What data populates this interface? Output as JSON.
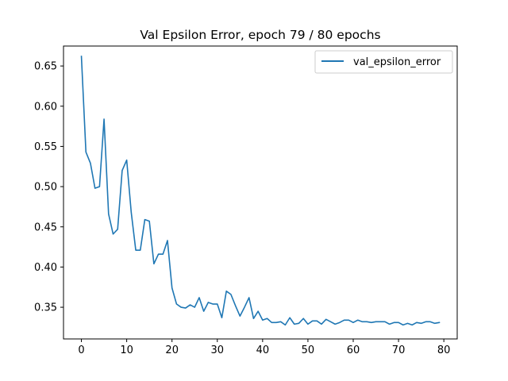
{
  "chart_data": {
    "type": "line",
    "title": "Val Epsilon Error, epoch 79 / 80 epochs",
    "xlabel": "",
    "ylabel": "",
    "xlim": [
      -3.95,
      82.95
    ],
    "ylim": [
      0.3106,
      0.6748
    ],
    "x_ticks": [
      0,
      10,
      20,
      30,
      40,
      50,
      60,
      70,
      80
    ],
    "y_ticks": [
      0.35,
      0.4,
      0.45,
      0.5,
      0.55,
      0.6,
      0.65
    ],
    "grid": false,
    "legend": {
      "placement": "top-right",
      "entries": [
        "val_epsilon_error"
      ]
    },
    "series": [
      {
        "name": "val_epsilon_error",
        "color": "#1f77b4",
        "x": [
          0,
          1,
          2,
          3,
          4,
          5,
          6,
          7,
          8,
          9,
          10,
          11,
          12,
          13,
          14,
          15,
          16,
          17,
          18,
          19,
          20,
          21,
          22,
          23,
          24,
          25,
          26,
          27,
          28,
          29,
          30,
          31,
          32,
          33,
          34,
          35,
          36,
          37,
          38,
          39,
          40,
          41,
          42,
          43,
          44,
          45,
          46,
          47,
          48,
          49,
          50,
          51,
          52,
          53,
          54,
          55,
          56,
          57,
          58,
          59,
          60,
          61,
          62,
          63,
          64,
          65,
          66,
          67,
          68,
          69,
          70,
          71,
          72,
          73,
          74,
          75,
          76,
          77,
          78,
          79
        ],
        "y": [
          0.662,
          0.543,
          0.529,
          0.498,
          0.5,
          0.584,
          0.466,
          0.441,
          0.447,
          0.52,
          0.533,
          0.468,
          0.421,
          0.421,
          0.459,
          0.457,
          0.404,
          0.416,
          0.416,
          0.433,
          0.374,
          0.354,
          0.35,
          0.349,
          0.353,
          0.35,
          0.362,
          0.345,
          0.356,
          0.354,
          0.354,
          0.337,
          0.37,
          0.366,
          0.352,
          0.339,
          0.35,
          0.362,
          0.336,
          0.345,
          0.334,
          0.336,
          0.331,
          0.331,
          0.332,
          0.328,
          0.337,
          0.329,
          0.33,
          0.336,
          0.329,
          0.333,
          0.333,
          0.329,
          0.335,
          0.332,
          0.329,
          0.331,
          0.334,
          0.334,
          0.331,
          0.334,
          0.332,
          0.332,
          0.331,
          0.332,
          0.332,
          0.332,
          0.329,
          0.331,
          0.331,
          0.328,
          0.33,
          0.328,
          0.331,
          0.33,
          0.332,
          0.332,
          0.33,
          0.331
        ]
      }
    ]
  }
}
